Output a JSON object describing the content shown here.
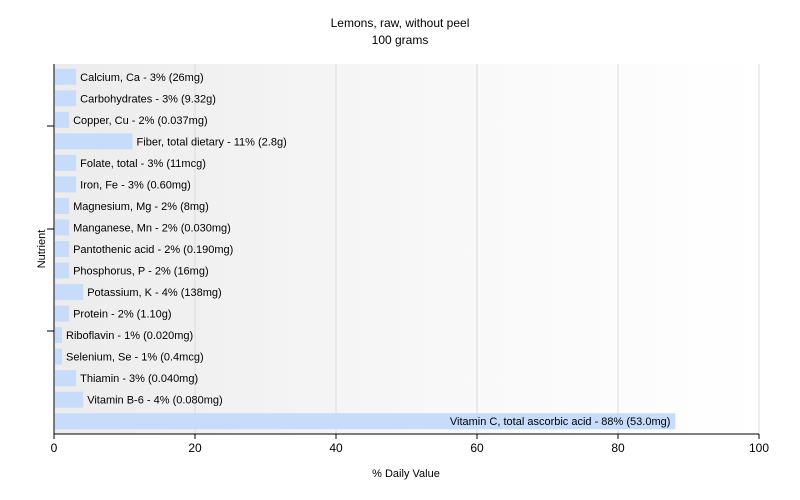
{
  "chart_data": {
    "type": "bar",
    "orientation": "horizontal",
    "title": "Lemons, raw, without peel",
    "subtitle": "100 grams",
    "xlabel": "% Daily Value",
    "ylabel": "Nutrient",
    "xlim": [
      0,
      100
    ],
    "xticks": [
      0,
      20,
      40,
      60,
      80,
      100
    ],
    "grid": true,
    "bar_color": "#c6dcfa",
    "categories": [
      "Calcium, Ca",
      "Carbohydrates",
      "Copper, Cu",
      "Fiber, total dietary",
      "Folate, total",
      "Iron, Fe",
      "Magnesium, Mg",
      "Manganese, Mn",
      "Pantothenic acid",
      "Phosphorus, P",
      "Potassium, K",
      "Protein",
      "Riboflavin",
      "Selenium, Se",
      "Thiamin",
      "Vitamin B-6",
      "Vitamin C, total ascorbic acid"
    ],
    "values": [
      3,
      3,
      2,
      11,
      3,
      3,
      2,
      2,
      2,
      2,
      4,
      2,
      1,
      1,
      3,
      4,
      88
    ],
    "labels": [
      "Calcium, Ca - 3% (26mg)",
      "Carbohydrates - 3% (9.32g)",
      "Copper, Cu - 2% (0.037mg)",
      "Fiber, total dietary - 11% (2.8g)",
      "Folate, total - 3% (11mcg)",
      "Iron, Fe - 3% (0.60mg)",
      "Magnesium, Mg - 2% (8mg)",
      "Manganese, Mn - 2% (0.030mg)",
      "Pantothenic acid - 2% (0.190mg)",
      "Phosphorus, P - 2% (16mg)",
      "Potassium, K - 4% (138mg)",
      "Protein - 2% (1.10g)",
      "Riboflavin - 1% (0.020mg)",
      "Selenium, Se - 1% (0.4mcg)",
      "Thiamin - 3% (0.040mg)",
      "Vitamin B-6 - 4% (0.080mg)",
      "Vitamin C, total ascorbic acid - 88% (53.0mg)"
    ]
  }
}
